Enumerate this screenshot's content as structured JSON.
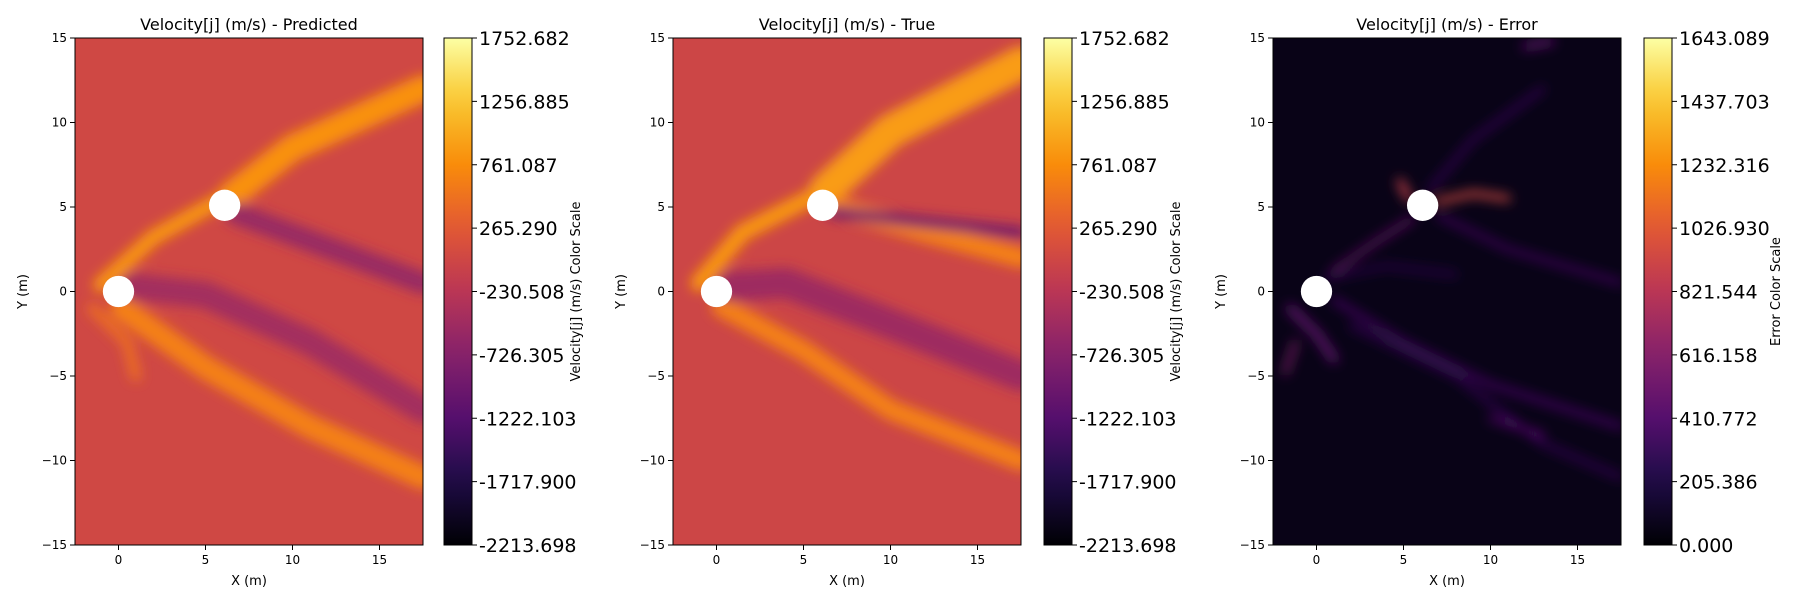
{
  "chart_data": [
    {
      "type": "heatmap",
      "title": "Velocity[j] (m/s) - Predicted",
      "xlabel": "X (m)",
      "ylabel": "Y (m)",
      "xlim": [
        -2.5,
        17.5
      ],
      "ylim": [
        -15,
        15
      ],
      "xticks": [
        "0",
        "5",
        "10",
        "15"
      ],
      "yticks": [
        "15",
        "10",
        "5",
        "0",
        "−5",
        "−10",
        "−15"
      ],
      "colormap": "inferno",
      "colorbar": {
        "label": "Velocity[j] (m/s) Color Scale",
        "range": [
          -2213.698,
          1752.682
        ],
        "ticks": [
          "1752.682",
          "1256.885",
          "761.087",
          "265.290",
          "-230.508",
          "-726.305",
          "-1222.103",
          "-1717.900",
          "-2213.698"
        ]
      },
      "obstacles": [
        {
          "x": 0,
          "y": 0,
          "r": 0.9
        },
        {
          "x": 6.1,
          "y": 5.1,
          "r": 0.9
        }
      ],
      "background_value": 30,
      "features": [
        {
          "shape": "arc",
          "pts": [
            [
              0.2,
              -1.0
            ],
            [
              5,
              -4.5
            ],
            [
              11,
              -8
            ],
            [
              17.5,
              -11
            ]
          ],
          "width": 1.4,
          "value": 650
        },
        {
          "shape": "arc",
          "pts": [
            [
              -1,
              0.4
            ],
            [
              2,
              3.2
            ],
            [
              6,
              5.5
            ]
          ],
          "width": 0.9,
          "value": 850
        },
        {
          "shape": "arc",
          "pts": [
            [
              6.5,
              5.7
            ],
            [
              10,
              8.5
            ],
            [
              17.5,
              12
            ]
          ],
          "width": 1.6,
          "value": 800
        },
        {
          "shape": "arc",
          "pts": [
            [
              0.8,
              0.3
            ],
            [
              5,
              -0.2
            ],
            [
              11,
              -3
            ],
            [
              17.5,
              -7
            ]
          ],
          "width": 1.6,
          "value": -450
        },
        {
          "shape": "arc",
          "pts": [
            [
              6.8,
              4.6
            ],
            [
              11,
              3
            ],
            [
              17.5,
              0.5
            ]
          ],
          "width": 1.3,
          "value": -550
        },
        {
          "shape": "arc",
          "pts": [
            [
              -1.5,
              -1
            ],
            [
              0.5,
              -3
            ],
            [
              1,
              -5
            ]
          ],
          "width": 0.6,
          "value": 500
        }
      ]
    },
    {
      "type": "heatmap",
      "title": "Velocity[j] (m/s) - True",
      "xlabel": "X (m)",
      "ylabel": "Y (m)",
      "xlim": [
        -2.5,
        17.5
      ],
      "ylim": [
        -15,
        15
      ],
      "xticks": [
        "0",
        "5",
        "10",
        "15"
      ],
      "yticks": [
        "15",
        "10",
        "5",
        "0",
        "−5",
        "−10",
        "−15"
      ],
      "colormap": "inferno",
      "colorbar": {
        "label": "Velocity[j] (m/s) Color Scale",
        "range": [
          -2213.698,
          1752.682
        ],
        "ticks": [
          "1752.682",
          "1256.885",
          "761.087",
          "265.290",
          "-230.508",
          "-726.305",
          "-1222.103",
          "-1717.900",
          "-2213.698"
        ]
      },
      "obstacles": [
        {
          "x": 0,
          "y": 0,
          "r": 0.9
        },
        {
          "x": 6.1,
          "y": 5.1,
          "r": 0.9
        }
      ],
      "background_value": 0,
      "features": [
        {
          "shape": "arc",
          "pts": [
            [
              -1,
              0.5
            ],
            [
              1.5,
              3.5
            ],
            [
              5.5,
              5.6
            ]
          ],
          "width": 1.0,
          "value": 850
        },
        {
          "shape": "arc",
          "pts": [
            [
              0.3,
              -0.9
            ],
            [
              5,
              -3.5
            ],
            [
              10,
              -7
            ],
            [
              17.5,
              -10
            ]
          ],
          "width": 1.2,
          "value": 650
        },
        {
          "shape": "arc",
          "pts": [
            [
              6.3,
              6.0
            ],
            [
              10,
              9.5
            ],
            [
              17.5,
              13.5
            ]
          ],
          "width": 2.0,
          "value": 900
        },
        {
          "shape": "arc",
          "pts": [
            [
              7,
              5
            ],
            [
              12,
              3.5
            ],
            [
              17.5,
              2
            ]
          ],
          "width": 1.2,
          "value": 650
        },
        {
          "shape": "arc",
          "pts": [
            [
              0.8,
              0.3
            ],
            [
              4,
              0.5
            ],
            [
              9,
              -1.5
            ],
            [
              17.5,
              -5
            ]
          ],
          "width": 1.8,
          "value": -500
        },
        {
          "shape": "arc",
          "pts": [
            [
              6.7,
              4.7
            ],
            [
              11,
              4.2
            ],
            [
              17.5,
              3.5
            ]
          ],
          "width": 0.7,
          "value": -900
        }
      ]
    },
    {
      "type": "heatmap",
      "title": "Velocity[j] (m/s) - Error",
      "xlabel": "X (m)",
      "ylabel": "Y (m)",
      "xlim": [
        -2.5,
        17.5
      ],
      "ylim": [
        -15,
        15
      ],
      "xticks": [
        "0",
        "5",
        "10",
        "15"
      ],
      "yticks": [
        "15",
        "10",
        "5",
        "0",
        "−5",
        "−10",
        "−15"
      ],
      "colormap": "inferno",
      "colorbar": {
        "label": "Error Color Scale",
        "range": [
          0,
          1643.089
        ],
        "ticks": [
          "1643.089",
          "1437.703",
          "1232.316",
          "1026.930",
          "821.544",
          "616.158",
          "410.772",
          "205.386",
          "0.000"
        ]
      },
      "obstacles": [
        {
          "x": 0,
          "y": 0,
          "r": 0.9
        },
        {
          "x": 6.1,
          "y": 5.1,
          "r": 0.9
        }
      ],
      "background_value": 60,
      "features": [
        {
          "shape": "arc",
          "pts": [
            [
              6.9,
              5.3
            ],
            [
              9,
              5.8
            ],
            [
              11,
              5.5
            ]
          ],
          "width": 0.35,
          "value": 950
        },
        {
          "shape": "arc",
          "pts": [
            [
              5.3,
              5.5
            ],
            [
              4.8,
              6.5
            ]
          ],
          "width": 0.4,
          "value": 900
        },
        {
          "shape": "arc",
          "pts": [
            [
              -1.5,
              -1
            ],
            [
              0,
              -2.5
            ],
            [
              1,
              -4
            ]
          ],
          "width": 0.5,
          "value": 450
        },
        {
          "shape": "arc",
          "pts": [
            [
              1,
              1.2
            ],
            [
              3.5,
              3
            ],
            [
              5.5,
              4.3
            ]
          ],
          "width": 0.3,
          "value": 500
        },
        {
          "shape": "arc",
          "pts": [
            [
              1,
              -0.5
            ],
            [
              5,
              -3
            ],
            [
              10,
              -5.5
            ],
            [
              17.5,
              -8
            ]
          ],
          "width": 0.35,
          "value": 350
        },
        {
          "shape": "arc",
          "pts": [
            [
              2,
              -2
            ],
            [
              8,
              -5
            ],
            [
              13,
              -9
            ],
            [
              17.5,
              -11
            ]
          ],
          "width": 0.3,
          "value": 300
        },
        {
          "shape": "arc",
          "pts": [
            [
              7,
              4.5
            ],
            [
              11,
              2.5
            ],
            [
              17.5,
              0.5
            ]
          ],
          "width": 0.3,
          "value": 350
        },
        {
          "shape": "arc",
          "pts": [
            [
              6.5,
              6
            ],
            [
              9,
              9
            ],
            [
              13,
              12
            ]
          ],
          "width": 0.3,
          "value": 300
        },
        {
          "shape": "arc",
          "pts": [
            [
              0.5,
              0.8
            ],
            [
              4,
              1.5
            ],
            [
              8,
              1
            ]
          ],
          "width": 0.25,
          "value": 280
        },
        {
          "shape": "arc",
          "pts": [
            [
              12,
              14.5
            ],
            [
              13.5,
              14.8
            ]
          ],
          "width": 0.4,
          "value": 450
        },
        {
          "shape": "arc",
          "pts": [
            [
              10,
              -7.5
            ],
            [
              13,
              -8.5
            ]
          ],
          "width": 0.3,
          "value": 420
        },
        {
          "shape": "arc",
          "pts": [
            [
              -1.8,
              -4.8
            ],
            [
              -1.2,
              -3
            ]
          ],
          "width": 0.3,
          "value": 600
        }
      ]
    }
  ]
}
